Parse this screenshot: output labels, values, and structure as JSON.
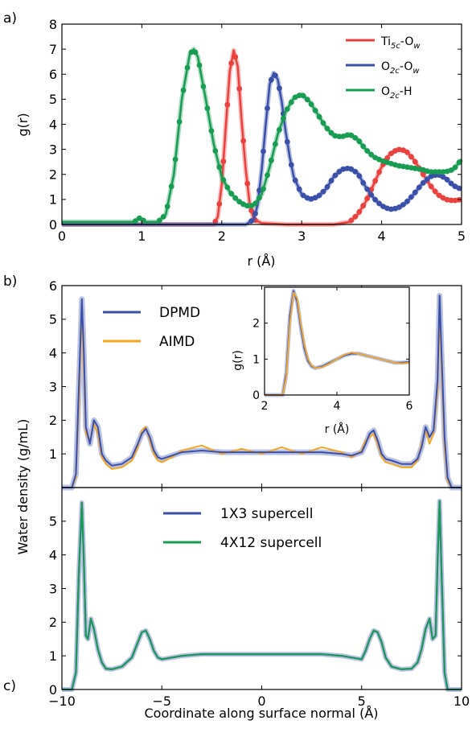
{
  "panel_labels": {
    "a": "a)",
    "b": "b)",
    "c": "c)"
  },
  "chart_data": [
    {
      "id": "a",
      "type": "line",
      "xlabel": "r (Å)",
      "ylabel": "g(r)",
      "xlim": [
        0,
        5
      ],
      "ylim": [
        0,
        8
      ],
      "xticks": [
        "0",
        "1",
        "2",
        "3",
        "4",
        "5"
      ],
      "yticks": [
        "0",
        "1",
        "2",
        "3",
        "4",
        "5",
        "6",
        "7",
        "8"
      ],
      "grid": false,
      "legend_position": "top-right",
      "colors": {
        "Ti": "#e8413e",
        "O2c": "#3a4fa8",
        "H": "#179c52"
      },
      "legend": {
        "ti": {
          "base": "Ti",
          "sub1": "5c",
          "mid": "-O",
          "sub2": "w"
        },
        "o2": {
          "base": "O",
          "sub1": "2c",
          "mid": "-O",
          "sub2": "w"
        },
        "h": {
          "base": "O",
          "sub1": "2c",
          "mid": "-H",
          "sub2": ""
        }
      },
      "series": [
        {
          "key": "Ti",
          "x": [
            0,
            1.9,
            1.95,
            2.0,
            2.05,
            2.1,
            2.15,
            2.2,
            2.25,
            2.3,
            2.35,
            2.4,
            2.5,
            2.8,
            3.4,
            3.6,
            3.7,
            3.8,
            3.9,
            4.0,
            4.1,
            4.2,
            4.3,
            4.4,
            4.5,
            4.6,
            4.7,
            4.8,
            4.9,
            5.0
          ],
          "y": [
            0,
            0,
            0.3,
            1.6,
            3.9,
            6.1,
            6.95,
            6.3,
            4.1,
            2.2,
            0.8,
            0.2,
            0.05,
            0,
            0,
            0.1,
            0.4,
            0.9,
            1.6,
            2.3,
            2.8,
            3.0,
            2.95,
            2.6,
            2.1,
            1.6,
            1.2,
            1.0,
            0.95,
            1.0
          ]
        },
        {
          "key": "O2c",
          "x": [
            0,
            2.3,
            2.4,
            2.45,
            2.5,
            2.55,
            2.6,
            2.65,
            2.7,
            2.75,
            2.8,
            2.85,
            2.9,
            3.0,
            3.1,
            3.2,
            3.3,
            3.4,
            3.5,
            3.6,
            3.7,
            3.8,
            3.9,
            4.0,
            4.1,
            4.2,
            4.3,
            4.4,
            4.5,
            4.6,
            4.7,
            4.8,
            4.9,
            5.0
          ],
          "y": [
            0,
            0,
            0.2,
            0.8,
            2.2,
            4.0,
            5.6,
            6.05,
            5.8,
            4.9,
            3.7,
            2.7,
            1.9,
            1.2,
            1.0,
            1.1,
            1.4,
            1.9,
            2.2,
            2.25,
            2.05,
            1.5,
            1.05,
            0.75,
            0.6,
            0.65,
            0.85,
            1.2,
            1.6,
            1.9,
            2.0,
            1.85,
            1.55,
            1.4
          ]
        },
        {
          "key": "H",
          "x": [
            0,
            0.9,
            0.97,
            1.0,
            1.05,
            1.2,
            1.3,
            1.4,
            1.5,
            1.6,
            1.65,
            1.7,
            1.8,
            1.9,
            2.0,
            2.1,
            2.2,
            2.3,
            2.4,
            2.5,
            2.6,
            2.7,
            2.8,
            2.9,
            3.0,
            3.1,
            3.2,
            3.3,
            3.4,
            3.5,
            3.6,
            3.7,
            3.8,
            3.9,
            4.0,
            4.1,
            4.2,
            4.3,
            4.4,
            4.5,
            4.6,
            4.7,
            4.8,
            4.9,
            5.0
          ],
          "y": [
            0.1,
            0.1,
            0.25,
            0.2,
            0.1,
            0.1,
            0.4,
            2.0,
            5.0,
            6.8,
            7.0,
            6.7,
            5.0,
            3.2,
            1.9,
            1.3,
            0.95,
            0.75,
            0.75,
            1.2,
            2.3,
            3.6,
            4.5,
            5.05,
            5.2,
            4.9,
            4.4,
            3.9,
            3.55,
            3.5,
            3.6,
            3.4,
            3.0,
            2.7,
            2.55,
            2.45,
            2.35,
            2.3,
            2.25,
            2.2,
            2.1,
            2.1,
            2.1,
            2.2,
            2.6
          ]
        }
      ]
    },
    {
      "id": "b",
      "type": "line",
      "xlim": [
        -10,
        10
      ],
      "ylim": [
        0,
        6
      ],
      "yticks": [
        "6",
        "5",
        "4",
        "3",
        "2",
        "1"
      ],
      "legend_position": "top-left",
      "series": [
        {
          "name": "DPMD",
          "color": "#3a4fa8"
        },
        {
          "name": "AIMD",
          "color": "#f5a623"
        }
      ],
      "profile_x": [
        -10,
        -9.5,
        -9.3,
        -9.15,
        -9.0,
        -8.9,
        -8.8,
        -8.6,
        -8.4,
        -8.2,
        -8.0,
        -7.8,
        -7.5,
        -7.0,
        -6.5,
        -6.2,
        -6.0,
        -5.8,
        -5.6,
        -5.4,
        -5.2,
        -5.0,
        -4.5,
        -4.0,
        -3.0,
        -2.0,
        -1.0,
        0,
        1.0,
        2.0,
        3.0,
        4.0,
        4.5,
        5.0,
        5.2,
        5.4,
        5.6,
        5.8,
        6.0,
        6.2,
        6.5,
        7.0,
        7.5,
        7.8,
        8.0,
        8.2,
        8.4,
        8.6,
        8.8,
        8.9,
        9.0,
        9.15,
        9.3,
        9.5,
        10
      ],
      "dpmd_y": [
        0,
        0,
        0.4,
        3.0,
        5.6,
        4.0,
        1.8,
        1.3,
        2.0,
        1.8,
        1.0,
        0.8,
        0.65,
        0.7,
        0.9,
        1.3,
        1.6,
        1.75,
        1.5,
        1.1,
        0.9,
        0.85,
        0.95,
        1.05,
        1.1,
        1.05,
        1.05,
        1.05,
        1.05,
        1.05,
        1.05,
        1.0,
        0.95,
        1.05,
        1.3,
        1.6,
        1.7,
        1.4,
        1.0,
        0.85,
        0.8,
        0.7,
        0.7,
        0.85,
        1.2,
        1.8,
        1.5,
        1.7,
        3.2,
        5.7,
        4.0,
        1.5,
        0.3,
        0,
        0
      ],
      "aimd_y": [
        0,
        0,
        0.3,
        2.5,
        5.4,
        3.5,
        1.6,
        1.4,
        1.9,
        1.6,
        0.9,
        0.7,
        0.55,
        0.6,
        0.8,
        1.2,
        1.7,
        1.8,
        1.4,
        1.0,
        0.8,
        0.75,
        0.9,
        1.1,
        1.25,
        1.0,
        1.15,
        1.0,
        1.2,
        1.0,
        1.2,
        1.05,
        0.9,
        1.1,
        1.4,
        1.5,
        1.6,
        1.3,
        0.9,
        0.75,
        0.7,
        0.6,
        0.6,
        0.8,
        1.3,
        1.7,
        1.3,
        1.6,
        2.9,
        5.3,
        3.6,
        1.2,
        0.2,
        0,
        0
      ],
      "inset": {
        "xlabel": "r (Å)",
        "ylabel": "g(r)",
        "xlim": [
          2,
          6
        ],
        "ylim": [
          0,
          3
        ],
        "xticks": [
          "2",
          "4",
          "6"
        ],
        "yticks": [
          "0",
          "1",
          "2"
        ],
        "x": [
          2,
          2.5,
          2.6,
          2.7,
          2.8,
          2.9,
          3.0,
          3.1,
          3.2,
          3.3,
          3.4,
          3.6,
          3.8,
          4.0,
          4.2,
          4.4,
          4.6,
          4.8,
          5.0,
          5.2,
          5.4,
          5.6,
          5.8,
          6.0
        ],
        "dpmd_y": [
          0,
          0,
          0.6,
          2.2,
          2.9,
          2.6,
          1.9,
          1.3,
          0.95,
          0.8,
          0.75,
          0.8,
          0.9,
          1.0,
          1.1,
          1.15,
          1.15,
          1.1,
          1.05,
          1.0,
          0.95,
          0.9,
          0.9,
          0.92
        ],
        "aimd_y": [
          0,
          0,
          0.5,
          2.0,
          2.85,
          2.7,
          2.0,
          1.4,
          1.0,
          0.82,
          0.75,
          0.78,
          0.88,
          1.0,
          1.12,
          1.18,
          1.15,
          1.1,
          1.05,
          1.0,
          0.95,
          0.9,
          0.88,
          0.9
        ]
      }
    },
    {
      "id": "c",
      "type": "line",
      "xlabel": "Coordinate along surface normal (Å)",
      "ylabel": "Water density (g/mL)",
      "xlim": [
        -10,
        10
      ],
      "ylim": [
        0,
        6
      ],
      "xticks": [
        "−10",
        "−5",
        "0",
        "5",
        "10"
      ],
      "yticks": [
        "0",
        "1",
        "2",
        "3",
        "4",
        "5"
      ],
      "legend_position": "top-center",
      "series": [
        {
          "name": "1X3 supercell",
          "color": "#3a4fa8"
        },
        {
          "name": "4X12 supercell",
          "color": "#179c52"
        }
      ],
      "profile_x": [
        -10,
        -9.5,
        -9.3,
        -9.15,
        -9.0,
        -8.9,
        -8.8,
        -8.7,
        -8.55,
        -8.4,
        -8.2,
        -8.0,
        -7.8,
        -7.5,
        -7.0,
        -6.5,
        -6.2,
        -6.0,
        -5.8,
        -5.6,
        -5.4,
        -5.2,
        -5.0,
        -4.5,
        -4.0,
        -3.0,
        -2.0,
        -1.0,
        0,
        1.0,
        2.0,
        3.0,
        4.0,
        4.5,
        5.0,
        5.2,
        5.4,
        5.6,
        5.8,
        6.0,
        6.2,
        6.5,
        7.0,
        7.5,
        7.8,
        8.0,
        8.2,
        8.4,
        8.55,
        8.7,
        8.8,
        8.9,
        9.0,
        9.15,
        9.3,
        9.5,
        10
      ],
      "y": [
        0,
        0,
        0.5,
        3.5,
        5.55,
        3.8,
        1.6,
        1.5,
        2.1,
        1.8,
        1.2,
        0.8,
        0.62,
        0.6,
        0.68,
        0.95,
        1.4,
        1.7,
        1.75,
        1.5,
        1.15,
        0.95,
        0.9,
        0.95,
        1.0,
        1.05,
        1.05,
        1.05,
        1.05,
        1.05,
        1.05,
        1.05,
        1.0,
        0.95,
        0.9,
        1.15,
        1.5,
        1.75,
        1.7,
        1.4,
        0.95,
        0.68,
        0.6,
        0.62,
        0.8,
        1.2,
        1.8,
        2.1,
        1.5,
        1.6,
        3.8,
        5.6,
        3.5,
        0.5,
        0,
        0,
        0
      ]
    }
  ]
}
